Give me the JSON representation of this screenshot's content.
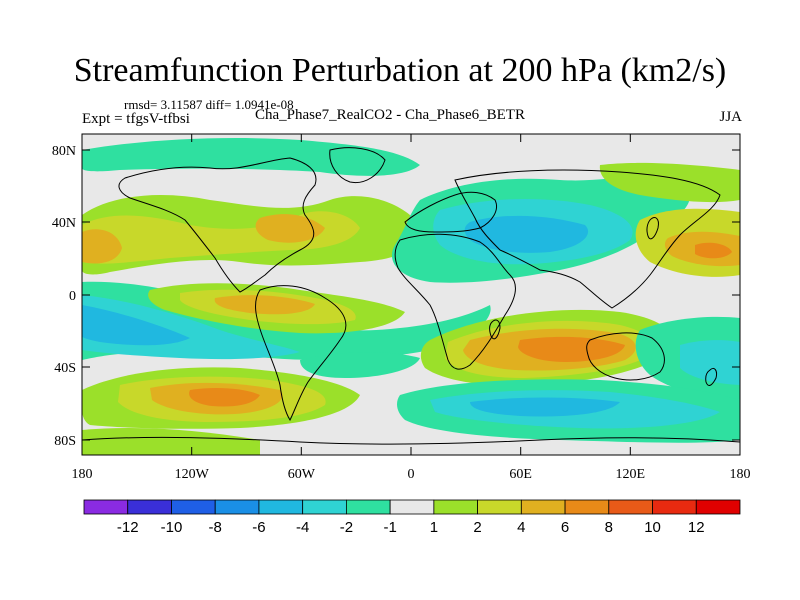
{
  "figure": {
    "title": "Streamfunction Perturbation at 200 hPa (km2/s)",
    "stats_line": "rmsd= 3.11587 diff= 1.0941e-08",
    "expt_line": "Expt = tfgsV-tfbsi",
    "center_line": "Cha_Phase7_RealCO2 - Cha_Phase6_BETR",
    "season": "JJA"
  },
  "axes": {
    "lat_labels": [
      "80N",
      "40N",
      "0",
      "40S",
      "80S"
    ],
    "lon_labels": [
      "180",
      "120W",
      "60W",
      "0",
      "60E",
      "120E",
      "180"
    ]
  },
  "colorbar": {
    "labels": [
      "-12",
      "-10",
      "-8",
      "-6",
      "-4",
      "-2",
      "-1",
      "1",
      "2",
      "4",
      "6",
      "8",
      "10",
      "12"
    ],
    "colors": [
      "#8a2be2",
      "#3a2fd8",
      "#1f5fe6",
      "#1a8fe6",
      "#20b8e0",
      "#2fd3d3",
      "#2fe0a0",
      "#e8e8e8",
      "#9be02a",
      "#c8d82a",
      "#e0b020",
      "#e88a18",
      "#e85a18",
      "#e82a10",
      "#e00000"
    ]
  },
  "map": {
    "colors": {
      "ocean_base": "#e8e8e8",
      "positive_light": "#9be02a",
      "positive_mid": "#c8d82a",
      "positive_high": "#e0b020",
      "positive_max": "#e88a18",
      "negative_light": "#2fe0a0",
      "negative_mid": "#2fd3d3",
      "negative_high": "#20b8e0",
      "negative_max": "#1a8fe6"
    }
  }
}
